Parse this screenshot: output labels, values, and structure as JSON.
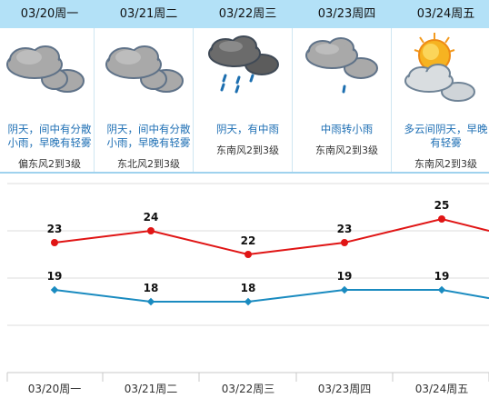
{
  "days": [
    {
      "date": "03/20周一",
      "desc_lines": [
        "阴天，间中有分散",
        "小雨，早晚有轻雾"
      ],
      "wind": "偏东风2到3级",
      "icon": "overcast-cloud-icon"
    },
    {
      "date": "03/21周二",
      "desc_lines": [
        "阴天，间中有分散",
        "小雨，早晚有轻雾"
      ],
      "wind": "东北风2到3级",
      "icon": "overcast-cloud-icon"
    },
    {
      "date": "03/22周三",
      "desc_lines": [
        "阴天，有中雨"
      ],
      "wind": "东南风2到3级",
      "icon": "rain-cloud-icon"
    },
    {
      "date": "03/23周四",
      "desc_lines": [
        "中雨转小雨"
      ],
      "wind": "东南风2到3级",
      "icon": "light-rain-cloud-icon"
    },
    {
      "date": "03/24周五",
      "desc_lines": [
        "多云间阴天，早晚",
        "有轻雾"
      ],
      "wind": "东南风2到3级",
      "icon": "sun-cloud-icon"
    }
  ],
  "colors": {
    "tab_bg": "#b3e1f7",
    "desc_text": "#1e6fb4",
    "high_line": "#e01515",
    "low_line": "#1a8bc0"
  },
  "chart_data": {
    "type": "line",
    "categories": [
      "03/20周一",
      "03/21周二",
      "03/22周三",
      "03/23周四",
      "03/24周五"
    ],
    "series": [
      {
        "values": [
          23,
          24,
          22,
          23,
          25
        ]
      },
      {
        "values": [
          19,
          18,
          18,
          19,
          19
        ]
      }
    ],
    "series_continues_right": {
      "high": 24,
      "low": 18.3
    },
    "ylim": [
      12,
      28
    ],
    "grid": true
  }
}
